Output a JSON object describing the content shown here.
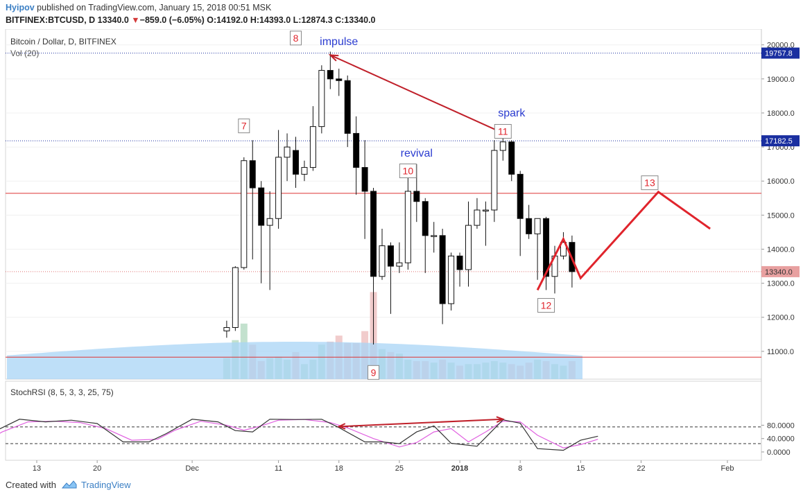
{
  "header": {
    "author": "Hyipov",
    "published": " published on TradingView.com, January 15, 2018 00:51 MSK",
    "symbol_prefix": "BITFINEX:BTCUSD, D  13340.0 ",
    "change_arrow": "▼",
    "change": "−859.0 (−6.05%)",
    "ohlc": " O:14192.0 H:14393.0 L:12874.3 C:13340.0"
  },
  "chart_data": {
    "type": "candlestick",
    "title": "Bitcoin / Dollar, D, BITFINEX",
    "volume_label": "Vol (20)",
    "ylim": [
      10300,
      20600
    ],
    "y_ticks": [
      "20000.0",
      "19000.0",
      "18000.0",
      "17000.0",
      "16000.0",
      "15000.0",
      "14000.0",
      "13000.0",
      "12000.0",
      "11000.0"
    ],
    "x_ticks": [
      "13",
      "20",
      "Dec",
      "11",
      "18",
      "25",
      "2018",
      "8",
      "15",
      "22",
      "Feb"
    ],
    "price_badges": [
      {
        "label": "19757.8",
        "value": 19757.8,
        "color": "#1a2fa0",
        "style": "dotted"
      },
      {
        "label": "17182.5",
        "value": 17182.5,
        "color": "#1a2fa0",
        "style": "dotted"
      },
      {
        "label": "13340.0",
        "value": 13340.0,
        "color": "#e08a8a",
        "style": "dotted-red"
      }
    ],
    "horizontal_lines": [
      15640,
      10830
    ],
    "candles": [
      {
        "d": "2017-12-05",
        "o": 11600,
        "h": 11900,
        "l": 11400,
        "c": 11700
      },
      {
        "d": "2017-12-06",
        "o": 11700,
        "h": 13500,
        "l": 11600,
        "c": 13460
      },
      {
        "d": "2017-12-07",
        "o": 13460,
        "h": 16700,
        "l": 13400,
        "c": 16600
      },
      {
        "d": "2017-12-08",
        "o": 16600,
        "h": 17200,
        "l": 13700,
        "c": 15800
      },
      {
        "d": "2017-12-09",
        "o": 15800,
        "h": 16000,
        "l": 13000,
        "c": 14700
      },
      {
        "d": "2017-12-10",
        "o": 14700,
        "h": 15700,
        "l": 12800,
        "c": 14900
      },
      {
        "d": "2017-12-11",
        "o": 14900,
        "h": 17500,
        "l": 14600,
        "c": 16700
      },
      {
        "d": "2017-12-12",
        "o": 16700,
        "h": 17400,
        "l": 16000,
        "c": 17000
      },
      {
        "d": "2017-12-13",
        "o": 16900,
        "h": 17300,
        "l": 15800,
        "c": 16200
      },
      {
        "d": "2017-12-14",
        "o": 16200,
        "h": 16600,
        "l": 16000,
        "c": 16400
      },
      {
        "d": "2017-12-15",
        "o": 16400,
        "h": 18200,
        "l": 16300,
        "c": 17600
      },
      {
        "d": "2017-12-16",
        "o": 17600,
        "h": 19400,
        "l": 17400,
        "c": 19250
      },
      {
        "d": "2017-12-17",
        "o": 19250,
        "h": 19800,
        "l": 18700,
        "c": 19000
      },
      {
        "d": "2017-12-18",
        "o": 19000,
        "h": 19300,
        "l": 18500,
        "c": 18950
      },
      {
        "d": "2017-12-19",
        "o": 18950,
        "h": 19100,
        "l": 17000,
        "c": 17400
      },
      {
        "d": "2017-12-20",
        "o": 17400,
        "h": 17900,
        "l": 15600,
        "c": 16400
      },
      {
        "d": "2017-12-21",
        "o": 16400,
        "h": 17200,
        "l": 14300,
        "c": 15700
      },
      {
        "d": "2017-12-22",
        "o": 15700,
        "h": 15800,
        "l": 11200,
        "c": 13200
      },
      {
        "d": "2017-12-23",
        "o": 13200,
        "h": 14600,
        "l": 13100,
        "c": 14100
      },
      {
        "d": "2017-12-24",
        "o": 14100,
        "h": 14200,
        "l": 12100,
        "c": 13500
      },
      {
        "d": "2017-12-25",
        "o": 13500,
        "h": 14200,
        "l": 13300,
        "c": 13600
      },
      {
        "d": "2017-12-26",
        "o": 13600,
        "h": 16100,
        "l": 13400,
        "c": 15700
      },
      {
        "d": "2017-12-27",
        "o": 15700,
        "h": 16500,
        "l": 14800,
        "c": 15400
      },
      {
        "d": "2017-12-28",
        "o": 15400,
        "h": 15500,
        "l": 13300,
        "c": 14400
      },
      {
        "d": "2017-12-29",
        "o": 14400,
        "h": 14800,
        "l": 13900,
        "c": 14400
      },
      {
        "d": "2017-12-30",
        "o": 14400,
        "h": 14600,
        "l": 11800,
        "c": 12400
      },
      {
        "d": "2017-12-31",
        "o": 12400,
        "h": 13900,
        "l": 12200,
        "c": 13800
      },
      {
        "d": "2018-01-01",
        "o": 13800,
        "h": 13900,
        "l": 12900,
        "c": 13400
      },
      {
        "d": "2018-01-02",
        "o": 13400,
        "h": 15400,
        "l": 12900,
        "c": 14700
      },
      {
        "d": "2018-01-03",
        "o": 14700,
        "h": 15500,
        "l": 14600,
        "c": 15150
      },
      {
        "d": "2018-01-04",
        "o": 15150,
        "h": 15400,
        "l": 14100,
        "c": 15150
      },
      {
        "d": "2018-01-05",
        "o": 15150,
        "h": 17200,
        "l": 14800,
        "c": 16900
      },
      {
        "d": "2018-01-06",
        "o": 16900,
        "h": 17250,
        "l": 16600,
        "c": 17150
      },
      {
        "d": "2018-01-07",
        "o": 17150,
        "h": 17200,
        "l": 16000,
        "c": 16200
      },
      {
        "d": "2018-01-08",
        "o": 16200,
        "h": 16300,
        "l": 13800,
        "c": 14900
      },
      {
        "d": "2018-01-09",
        "o": 14900,
        "h": 15300,
        "l": 14300,
        "c": 14450
      },
      {
        "d": "2018-01-10",
        "o": 14450,
        "h": 14900,
        "l": 13100,
        "c": 14900
      },
      {
        "d": "2018-01-11",
        "o": 14900,
        "h": 14950,
        "l": 12800,
        "c": 13200
      },
      {
        "d": "2018-01-12",
        "o": 13200,
        "h": 14100,
        "l": 12700,
        "c": 13800
      },
      {
        "d": "2018-01-13",
        "o": 13800,
        "h": 14500,
        "l": 13700,
        "c": 14200
      },
      {
        "d": "2018-01-14",
        "o": 14200,
        "h": 14400,
        "l": 12874.3,
        "c": 13340
      }
    ],
    "volume": [
      1400,
      2600,
      3700,
      2300,
      1200,
      1400,
      1500,
      1300,
      1800,
      1000,
      1300,
      2300,
      2500,
      2900,
      2400,
      2400,
      3200,
      5800,
      2000,
      1800,
      1700,
      1300,
      1200,
      1200,
      1100,
      1300,
      1100,
      900,
      1000,
      1000,
      1100,
      1200,
      1100,
      1000,
      900,
      1100,
      1300,
      1200,
      1000,
      900,
      1200
    ],
    "annotations": [
      {
        "label": "7",
        "d": "2017-12-07",
        "price": 17620
      },
      {
        "label": "8",
        "d": "2017-12-13",
        "price": 20200
      },
      {
        "label": "9",
        "d": "2017-12-22",
        "price": 10380
      },
      {
        "label": "10",
        "d": "2017-12-26",
        "price": 16300
      },
      {
        "label": "11",
        "d": "2018-01-06",
        "price": 17460
      },
      {
        "label": "12",
        "d": "2018-01-11",
        "price": 12350
      },
      {
        "label": "13",
        "d": "2018-01-23",
        "price": 15950
      }
    ],
    "text_notes": [
      {
        "text": "impulse",
        "d": "2017-12-18",
        "price": 19990
      },
      {
        "text": "revival",
        "d": "2017-12-27",
        "price": 16720
      },
      {
        "text": "spark",
        "d": "2018-01-07",
        "price": 17900
      }
    ],
    "arrow_impulse": {
      "from": {
        "d": "2018-01-06",
        "price": 17410
      },
      "to": {
        "d": "2017-12-17",
        "price": 19700
      }
    },
    "projection_path": [
      {
        "d": "2018-01-10",
        "price": 12800
      },
      {
        "d": "2018-01-13",
        "price": 14300
      },
      {
        "d": "2018-01-15",
        "price": 13150
      },
      {
        "d": "2018-01-24",
        "price": 15680
      },
      {
        "d": "2018-01-30",
        "price": 14600
      }
    ],
    "stochrsi": {
      "label": "StochRSI (8, 5, 3, 3, 25, 75)",
      "ylim": [
        -5,
        105
      ],
      "y_ticks": [
        "80.0000",
        "40.0000",
        "0.0000"
      ],
      "levels": [
        75,
        25
      ],
      "k": [
        {
          "d": "2017-10-31",
          "v": 12
        },
        {
          "d": "2017-11-03",
          "v": 2
        },
        {
          "d": "2017-11-05",
          "v": 4
        },
        {
          "d": "2017-11-08",
          "v": 60
        },
        {
          "d": "2017-11-11",
          "v": 98
        },
        {
          "d": "2017-11-14",
          "v": 90
        },
        {
          "d": "2017-11-17",
          "v": 95
        },
        {
          "d": "2017-11-20",
          "v": 85
        },
        {
          "d": "2017-11-23",
          "v": 30
        },
        {
          "d": "2017-11-26",
          "v": 30
        },
        {
          "d": "2017-11-28",
          "v": 55
        },
        {
          "d": "2017-12-01",
          "v": 98
        },
        {
          "d": "2017-12-04",
          "v": 90
        },
        {
          "d": "2017-12-06",
          "v": 64
        },
        {
          "d": "2017-12-08",
          "v": 60
        },
        {
          "d": "2017-12-10",
          "v": 98
        },
        {
          "d": "2017-12-13",
          "v": 97
        },
        {
          "d": "2017-12-16",
          "v": 98
        },
        {
          "d": "2017-12-18",
          "v": 73
        },
        {
          "d": "2017-12-21",
          "v": 30
        },
        {
          "d": "2017-12-23",
          "v": 30
        },
        {
          "d": "2017-12-25",
          "v": 25
        },
        {
          "d": "2017-12-27",
          "v": 60
        },
        {
          "d": "2017-12-29",
          "v": 78
        },
        {
          "d": "2017-12-31",
          "v": 26
        },
        {
          "d": "2018-01-03",
          "v": 17
        },
        {
          "d": "2018-01-06",
          "v": 96
        },
        {
          "d": "2018-01-08",
          "v": 86
        },
        {
          "d": "2018-01-10",
          "v": 10
        },
        {
          "d": "2018-01-13",
          "v": 5
        },
        {
          "d": "2018-01-15",
          "v": 35
        },
        {
          "d": "2018-01-17",
          "v": 47
        }
      ],
      "d": [
        {
          "d": "2017-10-31",
          "v": 20
        },
        {
          "d": "2017-11-03",
          "v": 10
        },
        {
          "d": "2017-11-06",
          "v": 15
        },
        {
          "d": "2017-11-09",
          "v": 60
        },
        {
          "d": "2017-11-12",
          "v": 90
        },
        {
          "d": "2017-11-15",
          "v": 92
        },
        {
          "d": "2017-11-18",
          "v": 88
        },
        {
          "d": "2017-11-21",
          "v": 70
        },
        {
          "d": "2017-11-24",
          "v": 35
        },
        {
          "d": "2017-11-27",
          "v": 38
        },
        {
          "d": "2017-11-29",
          "v": 65
        },
        {
          "d": "2017-12-02",
          "v": 92
        },
        {
          "d": "2017-12-05",
          "v": 80
        },
        {
          "d": "2017-12-07",
          "v": 65
        },
        {
          "d": "2017-12-09",
          "v": 78
        },
        {
          "d": "2017-12-11",
          "v": 95
        },
        {
          "d": "2017-12-14",
          "v": 97
        },
        {
          "d": "2017-12-17",
          "v": 88
        },
        {
          "d": "2017-12-19",
          "v": 72
        },
        {
          "d": "2017-12-22",
          "v": 40
        },
        {
          "d": "2017-12-25",
          "v": 15
        },
        {
          "d": "2017-12-27",
          "v": 28
        },
        {
          "d": "2017-12-29",
          "v": 60
        },
        {
          "d": "2017-12-31",
          "v": 70
        },
        {
          "d": "2018-01-02",
          "v": 30
        },
        {
          "d": "2018-01-04",
          "v": 60
        },
        {
          "d": "2018-01-06",
          "v": 92
        },
        {
          "d": "2018-01-08",
          "v": 90
        },
        {
          "d": "2018-01-10",
          "v": 50
        },
        {
          "d": "2018-01-13",
          "v": 12
        },
        {
          "d": "2018-01-15",
          "v": 22
        },
        {
          "d": "2018-01-17",
          "v": 38
        }
      ],
      "divergence_arrow": {
        "from": {
          "d": "2018-01-06",
          "v": 98
        },
        "to": {
          "d": "2017-12-18",
          "v": 76
        }
      }
    }
  },
  "colors": {
    "up": "#ffffff",
    "down": "#000000",
    "badge": "#1a2fa0",
    "price_badge": "#e8a0a0",
    "annotation": "#e0242c",
    "note": "#2a3bd0",
    "stoch_k": "#333333",
    "stoch_d": "#e060e0",
    "vol_ma": "#89c4f4"
  },
  "footer": {
    "created_with": "Created with",
    "brand": "TradingView"
  }
}
